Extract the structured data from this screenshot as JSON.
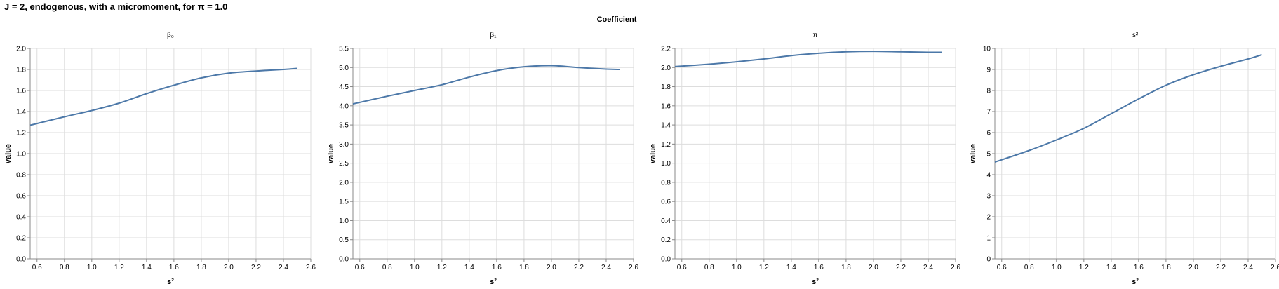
{
  "chart_data": {
    "type": "line",
    "title": "J = 2, endogenous, with a micromoment,  for π = 1.0",
    "facet_header": "Coefficient",
    "xlabel": "s²",
    "ylabel": "value",
    "line_color": "#4c78a8",
    "x_ticks": [
      0.6,
      0.8,
      1.0,
      1.2,
      1.4,
      1.6,
      1.8,
      2.0,
      2.2,
      2.4,
      2.6
    ],
    "panels": [
      {
        "title": "β₀",
        "xlim": [
          0.55,
          2.6
        ],
        "ylim": [
          0,
          2.0
        ],
        "y_ticks": [
          0.0,
          0.2,
          0.4,
          0.6,
          0.8,
          1.0,
          1.2,
          1.4,
          1.6,
          1.8,
          2.0
        ],
        "y_decimals": 1,
        "x": [
          0.55,
          0.8,
          1.0,
          1.2,
          1.4,
          1.6,
          1.8,
          2.0,
          2.2,
          2.4,
          2.5
        ],
        "values": [
          1.27,
          1.35,
          1.41,
          1.48,
          1.57,
          1.65,
          1.72,
          1.765,
          1.785,
          1.8,
          1.81
        ]
      },
      {
        "title": "β₁",
        "xlim": [
          0.55,
          2.6
        ],
        "ylim": [
          0,
          5.5
        ],
        "y_ticks": [
          0.0,
          0.5,
          1.0,
          1.5,
          2.0,
          2.5,
          3.0,
          3.5,
          4.0,
          4.5,
          5.0,
          5.5
        ],
        "y_decimals": 1,
        "x": [
          0.55,
          0.8,
          1.0,
          1.2,
          1.4,
          1.6,
          1.8,
          2.0,
          2.2,
          2.4,
          2.5
        ],
        "values": [
          4.05,
          4.25,
          4.4,
          4.55,
          4.75,
          4.92,
          5.02,
          5.05,
          5.0,
          4.96,
          4.95
        ]
      },
      {
        "title": "π",
        "xlim": [
          0.55,
          2.6
        ],
        "ylim": [
          0,
          2.2
        ],
        "y_ticks": [
          0.0,
          0.2,
          0.4,
          0.6,
          0.8,
          1.0,
          1.2,
          1.4,
          1.6,
          1.8,
          2.0,
          2.2
        ],
        "y_decimals": 1,
        "x": [
          0.55,
          0.8,
          1.0,
          1.2,
          1.4,
          1.6,
          1.8,
          2.0,
          2.2,
          2.4,
          2.5
        ],
        "values": [
          2.01,
          2.035,
          2.06,
          2.09,
          2.125,
          2.15,
          2.165,
          2.17,
          2.165,
          2.16,
          2.16
        ]
      },
      {
        "title": "s²",
        "xlim": [
          0.55,
          2.6
        ],
        "ylim": [
          0,
          10
        ],
        "y_ticks": [
          0,
          1,
          2,
          3,
          4,
          5,
          6,
          7,
          8,
          9,
          10
        ],
        "y_decimals": 0,
        "x": [
          0.55,
          0.8,
          1.0,
          1.2,
          1.4,
          1.6,
          1.8,
          2.0,
          2.2,
          2.4,
          2.5
        ],
        "values": [
          4.6,
          5.15,
          5.65,
          6.2,
          6.9,
          7.6,
          8.25,
          8.75,
          9.15,
          9.5,
          9.7
        ]
      }
    ]
  }
}
